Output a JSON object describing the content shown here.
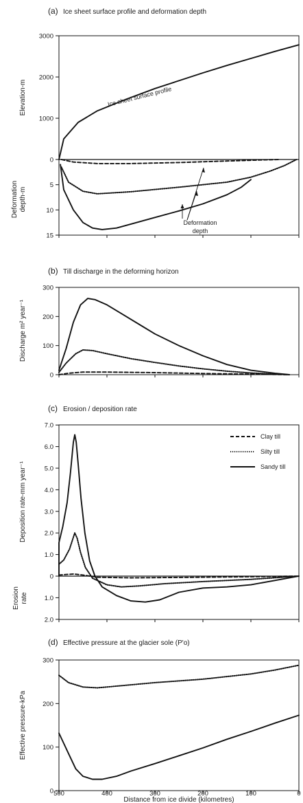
{
  "chart_data": [
    {
      "id": "a",
      "type": "line",
      "panel_letter": "(a)",
      "title": "Ice sheet surface profile and deformation depth",
      "x": {
        "range": [
          500,
          0
        ],
        "ticks": []
      },
      "upper": {
        "ylabel": "Elevation-m",
        "ylim": [
          0,
          3000
        ],
        "ticks": [
          "0",
          "1000",
          "2000",
          "3000"
        ],
        "series": [
          {
            "name": "Ice sheet surface profile",
            "style": "solid",
            "points": [
              [
                500,
                0
              ],
              [
                490,
                500
              ],
              [
                460,
                900
              ],
              [
                420,
                1180
              ],
              [
                360,
                1460
              ],
              [
                300,
                1720
              ],
              [
                250,
                1910
              ],
              [
                200,
                2100
              ],
              [
                150,
                2280
              ],
              [
                100,
                2450
              ],
              [
                50,
                2620
              ],
              [
                0,
                2780
              ]
            ]
          }
        ]
      },
      "lower": {
        "ylabel": "Deformation depth-m",
        "ylim": [
          0,
          15
        ],
        "reversed": true,
        "ticks": [
          "5",
          "10",
          "15"
        ],
        "series": [
          {
            "name": "Clay till",
            "style": "dashed",
            "points": [
              [
                495,
                0
              ],
              [
                470,
                0.5
              ],
              [
                420,
                0.8
              ],
              [
                350,
                0.8
              ],
              [
                250,
                0.6
              ],
              [
                150,
                0.3
              ],
              [
                80,
                0.1
              ],
              [
                40,
                0
              ]
            ]
          },
          {
            "name": "Silty till",
            "style": "dotted",
            "points": [
              [
                495,
                1.5
              ],
              [
                480,
                4.5
              ],
              [
                450,
                6.3
              ],
              [
                420,
                6.8
              ],
              [
                350,
                6.4
              ],
              [
                250,
                5.5
              ],
              [
                150,
                4.5
              ],
              [
                100,
                3.5
              ],
              [
                60,
                2.3
              ],
              [
                30,
                1.2
              ],
              [
                5,
                0
              ]
            ]
          },
          {
            "name": "Sandy till",
            "style": "solid",
            "points": [
              [
                497,
                1
              ],
              [
                490,
                6
              ],
              [
                470,
                10
              ],
              [
                450,
                12.5
              ],
              [
                430,
                13.6
              ],
              [
                410,
                13.9
              ],
              [
                380,
                13.6
              ],
              [
                350,
                12.8
              ],
              [
                300,
                11.5
              ],
              [
                250,
                10.2
              ],
              [
                200,
                8.8
              ],
              [
                150,
                7
              ],
              [
                120,
                5.5
              ],
              [
                100,
                4
              ]
            ]
          }
        ]
      },
      "annotation": "Deformation depth"
    },
    {
      "id": "b",
      "type": "line",
      "panel_letter": "(b)",
      "title": "Till discharge in the deforming horizon",
      "ylabel": "Discharge m² year⁻¹",
      "x": {
        "range": [
          500,
          0
        ],
        "ticks": []
      },
      "ylim": [
        0,
        300
      ],
      "ticks": [
        "0",
        "100",
        "200",
        "300"
      ],
      "series": [
        {
          "name": "Clay till",
          "style": "dashed",
          "points": [
            [
              500,
              0
            ],
            [
              480,
              5
            ],
            [
              450,
              9
            ],
            [
              400,
              9
            ],
            [
              300,
              7
            ],
            [
              200,
              4
            ],
            [
              100,
              2
            ],
            [
              20,
              0
            ]
          ]
        },
        {
          "name": "Silty till",
          "style": "dotted",
          "points": [
            [
              500,
              8
            ],
            [
              485,
              40
            ],
            [
              465,
              72
            ],
            [
              450,
              85
            ],
            [
              430,
              83
            ],
            [
              400,
              72
            ],
            [
              350,
              55
            ],
            [
              300,
              42
            ],
            [
              250,
              30
            ],
            [
              200,
              20
            ],
            [
              150,
              12
            ],
            [
              100,
              6
            ],
            [
              50,
              2
            ],
            [
              20,
              0
            ]
          ]
        },
        {
          "name": "Sandy till",
          "style": "solid",
          "points": [
            [
              500,
              15
            ],
            [
              485,
              90
            ],
            [
              470,
              180
            ],
            [
              455,
              240
            ],
            [
              440,
              262
            ],
            [
              425,
              258
            ],
            [
              400,
              240
            ],
            [
              370,
              210
            ],
            [
              330,
              170
            ],
            [
              300,
              140
            ],
            [
              250,
              100
            ],
            [
              200,
              65
            ],
            [
              150,
              35
            ],
            [
              100,
              15
            ],
            [
              50,
              5
            ],
            [
              20,
              0
            ]
          ]
        }
      ]
    },
    {
      "id": "c",
      "type": "line",
      "panel_letter": "(c)",
      "title": "Erosion / deposition rate",
      "ylabel_upper": "Deposition rate-mm year⁻¹",
      "ylabel_lower": "Erosion rate",
      "x": {
        "range": [
          500,
          0
        ],
        "ticks": []
      },
      "ylim": [
        -2,
        7
      ],
      "ticks": [
        {
          "value": 7,
          "label": "7.0"
        },
        {
          "value": 6,
          "label": "6.0"
        },
        {
          "value": 5,
          "label": "5.0"
        },
        {
          "value": 4,
          "label": "4.0"
        },
        {
          "value": 3,
          "label": "3.0"
        },
        {
          "value": 2,
          "label": "2.0"
        },
        {
          "value": 1,
          "label": "1.0"
        },
        {
          "value": 0,
          "label": "0"
        },
        {
          "value": -1,
          "label": "1.0"
        },
        {
          "value": -2,
          "label": "2.0"
        }
      ],
      "legend": {
        "placement": "top-right",
        "entries": [
          {
            "label": "Clay till",
            "style": "dashed"
          },
          {
            "label": "Silty till",
            "style": "dotted"
          },
          {
            "label": "Sandy till",
            "style": "solid"
          }
        ]
      },
      "series": [
        {
          "name": "Clay till",
          "style": "dashed",
          "points": [
            [
              500,
              0.05
            ],
            [
              470,
              0.1
            ],
            [
              450,
              0.05
            ],
            [
              420,
              -0.05
            ],
            [
              350,
              -0.08
            ],
            [
              250,
              -0.06
            ],
            [
              100,
              -0.03
            ],
            [
              0,
              0
            ]
          ]
        },
        {
          "name": "Silty till",
          "style": "dotted",
          "points": [
            [
              500,
              0.55
            ],
            [
              490,
              0.75
            ],
            [
              478,
              1.25
            ],
            [
              470,
              1.8
            ],
            [
              467,
              2.0
            ],
            [
              462,
              1.75
            ],
            [
              455,
              1.1
            ],
            [
              445,
              0.4
            ],
            [
              430,
              -0.1
            ],
            [
              400,
              -0.4
            ],
            [
              370,
              -0.5
            ],
            [
              330,
              -0.45
            ],
            [
              280,
              -0.35
            ],
            [
              200,
              -0.25
            ],
            [
              100,
              -0.15
            ],
            [
              0,
              0
            ]
          ]
        },
        {
          "name": "Sandy till",
          "style": "solid",
          "points": [
            [
              500,
              0
            ],
            [
              500,
              1.55
            ],
            [
              492,
              2.3
            ],
            [
              483,
              3.4
            ],
            [
              476,
              4.8
            ],
            [
              470,
              6.2
            ],
            [
              467,
              6.55
            ],
            [
              464,
              6.2
            ],
            [
              460,
              5.2
            ],
            [
              454,
              3.6
            ],
            [
              446,
              2.0
            ],
            [
              436,
              0.7
            ],
            [
              425,
              0
            ],
            [
              410,
              -0.5
            ],
            [
              380,
              -0.9
            ],
            [
              350,
              -1.15
            ],
            [
              320,
              -1.2
            ],
            [
              290,
              -1.1
            ],
            [
              250,
              -0.75
            ],
            [
              200,
              -0.55
            ],
            [
              150,
              -0.5
            ],
            [
              100,
              -0.4
            ],
            [
              50,
              -0.2
            ],
            [
              0,
              0
            ]
          ]
        }
      ]
    },
    {
      "id": "d",
      "type": "line",
      "panel_letter": "(d)",
      "title": "Effective pressure at the glacier sole (P'o)",
      "ylabel": "Effective pressure-kPa",
      "xlabel": "Distance from ice divide (kilometres)",
      "x": {
        "range": [
          500,
          0
        ],
        "ticks": [
          "500",
          "400",
          "300",
          "200",
          "100",
          "0"
        ]
      },
      "ylim": [
        0,
        300
      ],
      "ticks": [
        "0",
        "100",
        "200",
        "300"
      ],
      "series": [
        {
          "name": "Silty till",
          "style": "dotted",
          "points": [
            [
              500,
              265
            ],
            [
              480,
              248
            ],
            [
              450,
              238
            ],
            [
              420,
              236
            ],
            [
              380,
              240
            ],
            [
              300,
              248
            ],
            [
              200,
              256
            ],
            [
              100,
              268
            ],
            [
              50,
              277
            ],
            [
              0,
              288
            ]
          ]
        },
        {
          "name": "Sandy till",
          "style": "solid",
          "points": [
            [
              500,
              132
            ],
            [
              480,
              85
            ],
            [
              465,
              50
            ],
            [
              450,
              33
            ],
            [
              430,
              26
            ],
            [
              410,
              26
            ],
            [
              380,
              33
            ],
            [
              350,
              45
            ],
            [
              300,
              62
            ],
            [
              250,
              80
            ],
            [
              200,
              98
            ],
            [
              150,
              118
            ],
            [
              100,
              136
            ],
            [
              50,
              155
            ],
            [
              0,
              173
            ]
          ]
        }
      ]
    }
  ]
}
